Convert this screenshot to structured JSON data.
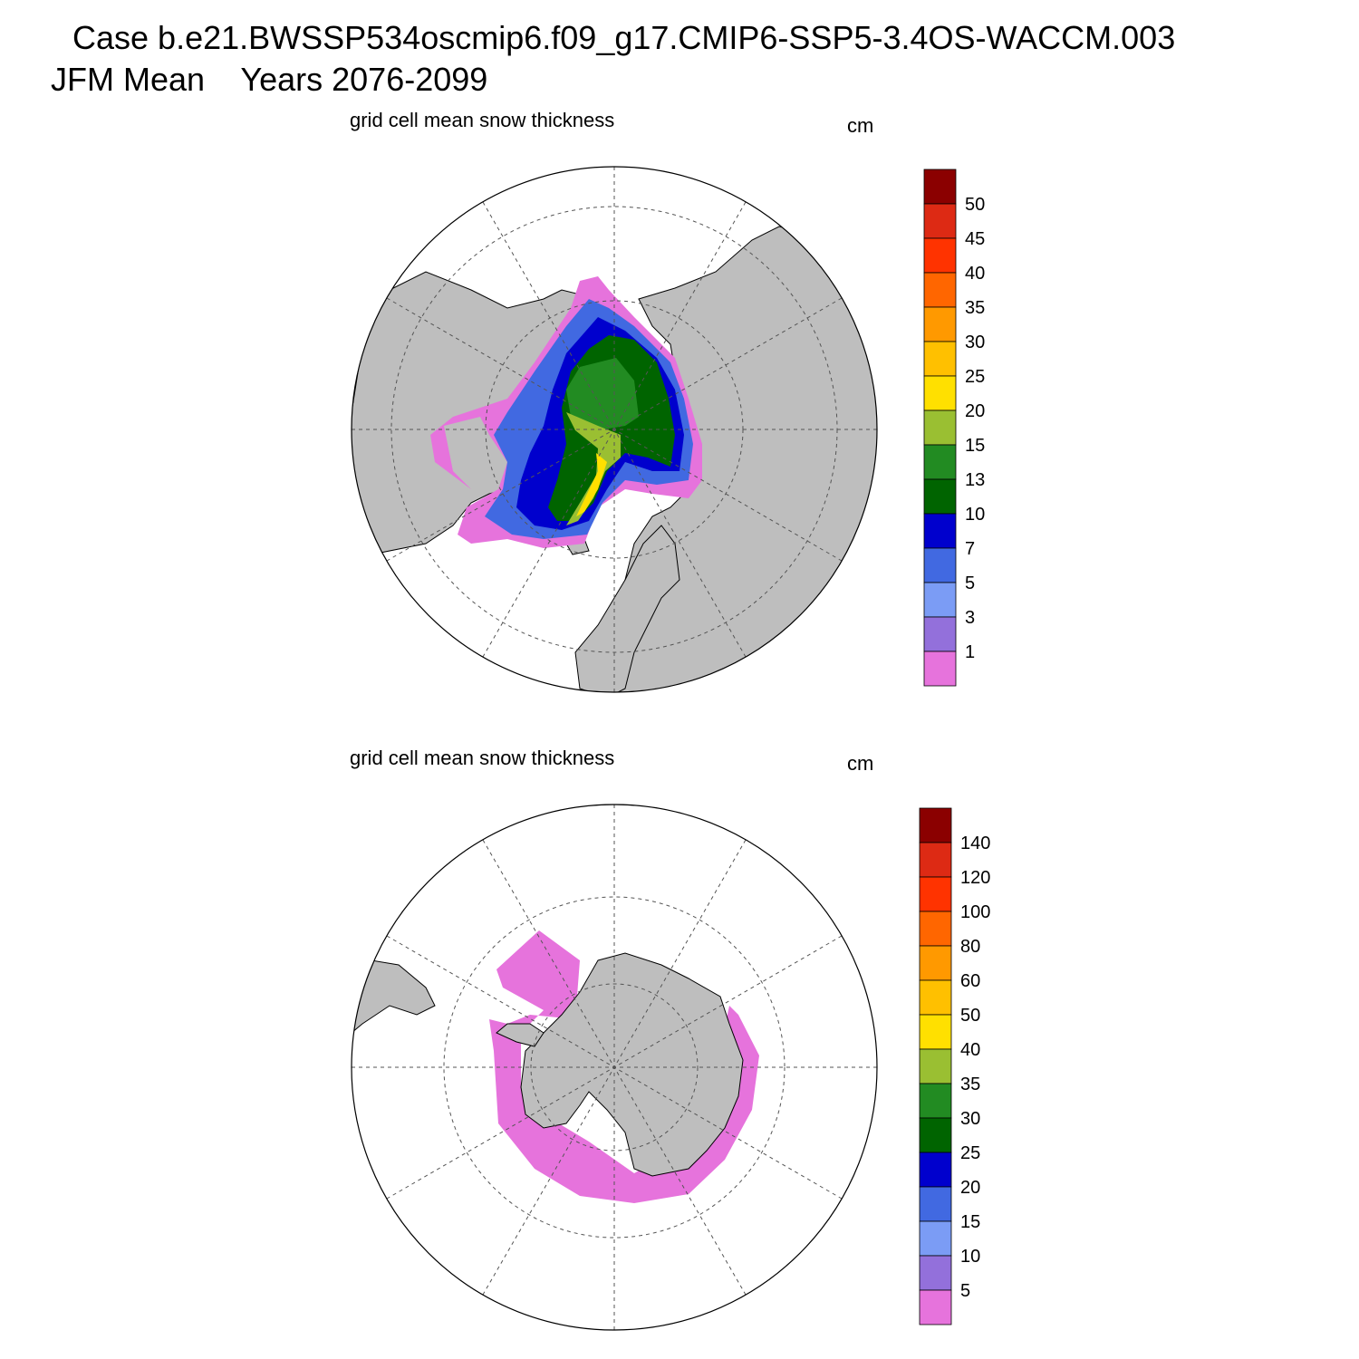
{
  "header": {
    "case_line": "Case b.e21.BWSSP534oscmip6.f09_g17.CMIP6-SSP5-3.4OS-WACCM.003",
    "season_line": "JFM Mean    Years 2076-2099"
  },
  "panels": [
    {
      "title": "grid cell mean snow thickness",
      "units": "cm",
      "hemisphere": "north",
      "colorbar": {
        "labels": [
          "1",
          "3",
          "5",
          "7",
          "10",
          "13",
          "15",
          "20",
          "25",
          "30",
          "35",
          "40",
          "45",
          "50"
        ],
        "colors": [
          "#e673dc",
          "#9370db",
          "#7b9cf5",
          "#4169e1",
          "#0000cd",
          "#006400",
          "#228b22",
          "#9abf32",
          "#ffe000",
          "#ffc000",
          "#ff9900",
          "#ff6600",
          "#ff3300",
          "#dd2a14",
          "#8b0000"
        ]
      }
    },
    {
      "title": "grid cell mean snow thickness",
      "units": "cm",
      "hemisphere": "south",
      "colorbar": {
        "labels": [
          "5",
          "10",
          "15",
          "20",
          "25",
          "30",
          "35",
          "40",
          "50",
          "60",
          "80",
          "100",
          "120",
          "140"
        ],
        "colors": [
          "#e673dc",
          "#9370db",
          "#7b9cf5",
          "#4169e1",
          "#0000cd",
          "#006400",
          "#228b22",
          "#9abf32",
          "#ffe000",
          "#ffc000",
          "#ff9900",
          "#ff6600",
          "#ff3300",
          "#dd2a14",
          "#8b0000"
        ]
      }
    }
  ],
  "map_colors": {
    "land": "#bebebe",
    "ocean": "#ffffff",
    "coast": "#000000",
    "grid": "#555555"
  }
}
